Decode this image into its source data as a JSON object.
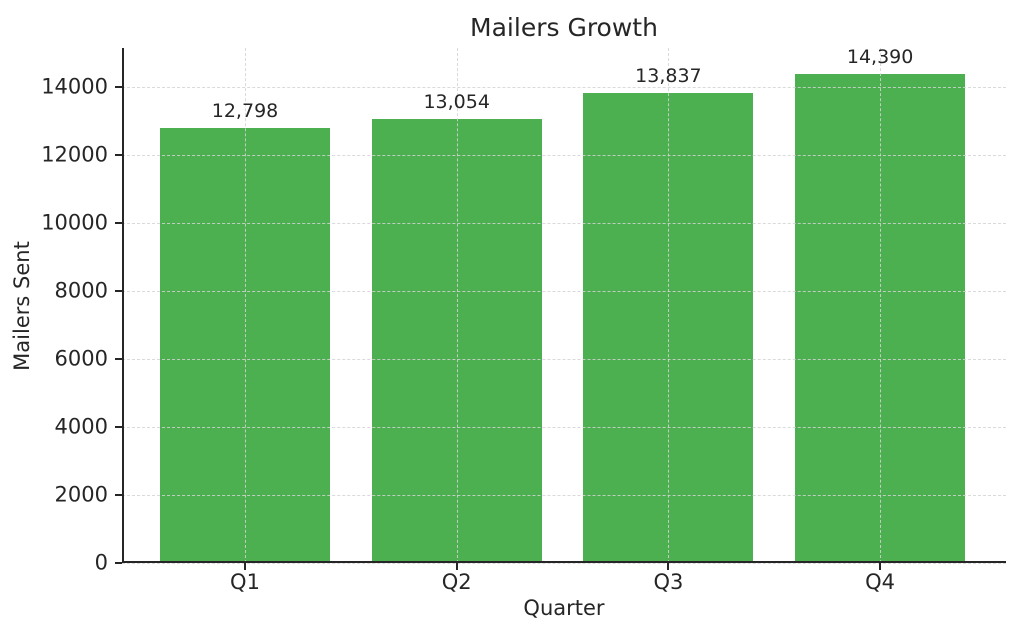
{
  "chart_data": {
    "type": "bar",
    "title": "Mailers Growth",
    "xlabel": "Quarter",
    "ylabel": "Mailers Sent",
    "categories": [
      "Q1",
      "Q2",
      "Q3",
      "Q4"
    ],
    "values": [
      12798,
      13054,
      13837,
      14390
    ],
    "value_labels": [
      "12,798",
      "13,054",
      "13,837",
      "14,390"
    ],
    "yticks": [
      0,
      2000,
      4000,
      6000,
      8000,
      10000,
      12000,
      14000
    ],
    "ytick_labels": [
      "0",
      "2000",
      "4000",
      "6000",
      "8000",
      "10000",
      "12000",
      "14000"
    ],
    "ylim": [
      0,
      15150
    ],
    "grid": {
      "visible": true,
      "style": "dashed",
      "axes": "both",
      "drawn_above_bars": true
    },
    "legend": {
      "visible": false
    },
    "colors": {
      "bar": "#4caf50",
      "grid": "rgba(211,211,211,0.85)",
      "text": "#262626",
      "spine": "#262626",
      "background": "#ffffff"
    }
  }
}
